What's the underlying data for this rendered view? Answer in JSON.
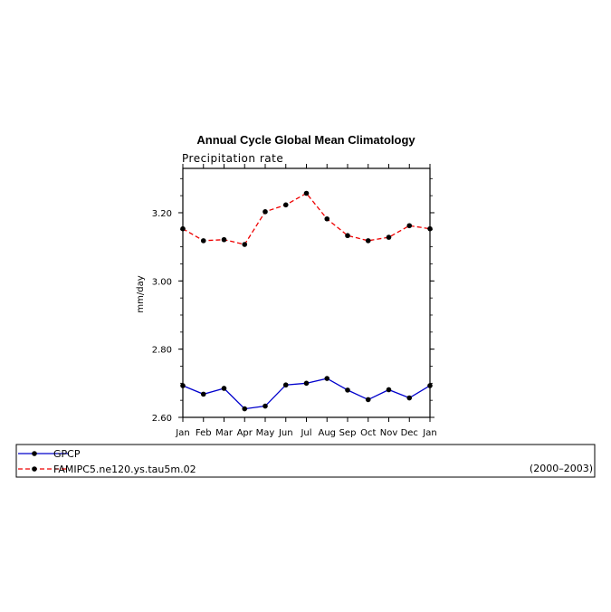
{
  "chart_data": {
    "type": "line",
    "title": "Annual Cycle Global Mean Climatology",
    "subtitle": "Precipitation rate",
    "ylabel": "mm/day",
    "xlabel": "",
    "categories": [
      "Jan",
      "Feb",
      "Mar",
      "Apr",
      "May",
      "Jun",
      "Jul",
      "Aug",
      "Sep",
      "Oct",
      "Nov",
      "Dec",
      "Jan"
    ],
    "ylim": [
      2.6,
      3.33
    ],
    "yticks": [
      "2.60",
      "2.80",
      "3.00",
      "3.20"
    ],
    "grid": false,
    "legend_position": "bottom",
    "period_label": "(2000–2003)",
    "series": [
      {
        "name": "GPCP",
        "color": "#0000cc",
        "dash": "solid",
        "values": [
          2.693,
          2.668,
          2.685,
          2.625,
          2.633,
          2.695,
          2.7,
          2.714,
          2.68,
          2.652,
          2.681,
          2.657,
          2.693
        ]
      },
      {
        "name": "FAMIPC5.ne120.ys.tau5m.02",
        "color": "#ee0000",
        "dash": "dashed",
        "values": [
          3.153,
          3.118,
          3.121,
          3.107,
          3.203,
          3.223,
          3.257,
          3.182,
          3.133,
          3.118,
          3.128,
          3.162,
          3.153
        ]
      }
    ]
  }
}
